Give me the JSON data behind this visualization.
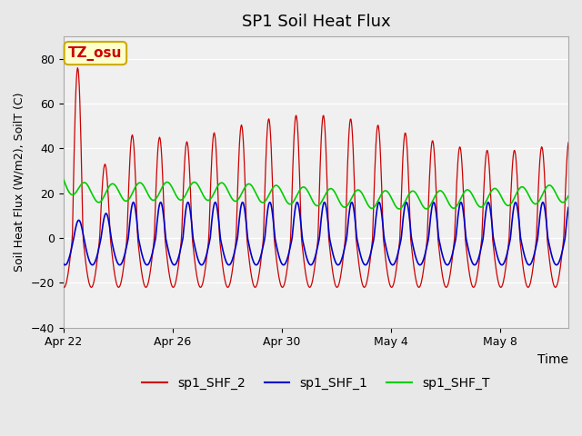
{
  "title": "SP1 Soil Heat Flux",
  "xlabel": "Time",
  "ylabel": "Soil Heat Flux (W/m2), SoilT (C)",
  "ylim": [
    -40,
    90
  ],
  "yticks": [
    -40,
    -20,
    0,
    20,
    40,
    60,
    80
  ],
  "xlim_days": [
    0,
    18.5
  ],
  "x_tick_days": [
    0,
    4,
    8,
    12,
    16
  ],
  "x_tick_labels": [
    "Apr 22",
    "Apr 26",
    "Apr 30",
    "May 4",
    "May 8"
  ],
  "colors": {
    "sp1_SHF_2": "#cc0000",
    "sp1_SHF_1": "#0000cc",
    "sp1_SHF_T": "#00cc00"
  },
  "legend_labels": [
    "sp1_SHF_2",
    "sp1_SHF_1",
    "sp1_SHF_T"
  ],
  "watermark_text": "TZ_osu",
  "watermark_color": "#cc0000",
  "watermark_bg": "#ffffcc",
  "watermark_border": "#ccaa00",
  "bg_color": "#e8e8e8",
  "plot_bg": "#f0f0f0",
  "grid_color": "#ffffff",
  "n_days": 18.5,
  "points_per_day": 48
}
